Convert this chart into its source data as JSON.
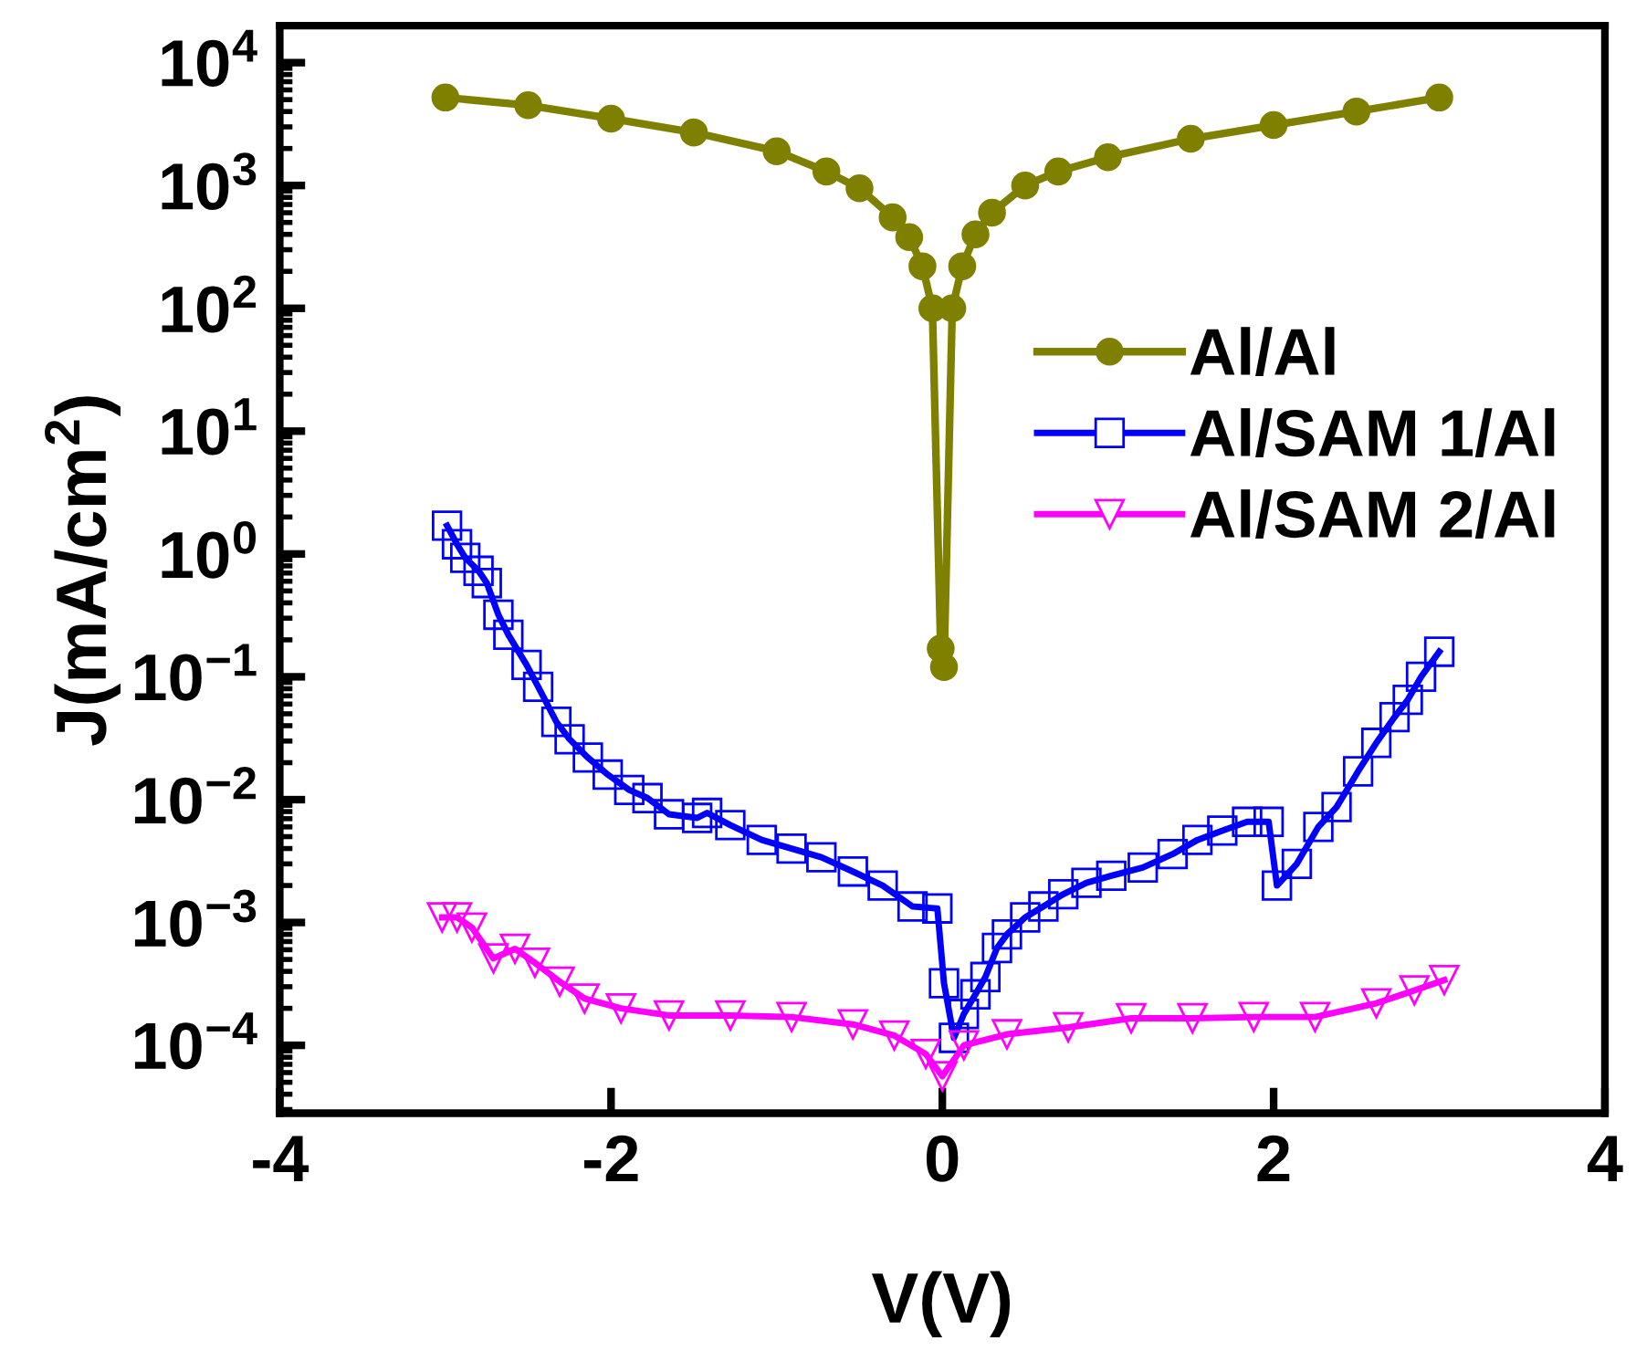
{
  "chart_data": {
    "type": "line",
    "xlabel": "V(V)",
    "ylabel": "J(mA/cm$^{2}$)",
    "log": "y",
    "grid": false,
    "legend": "center right",
    "xlim": [
      -4,
      4
    ],
    "xticks": [
      -4,
      -2,
      0,
      2,
      4
    ],
    "ylim": [
      2.8e-05,
      20000.0
    ],
    "yticks": [
      {
        "value": 0.0001,
        "label": "10$^{−4}$"
      },
      {
        "value": 0.001,
        "label": "10$^{−3}$"
      },
      {
        "value": 0.01,
        "label": "10$^{−2}$"
      },
      {
        "value": 0.1,
        "label": "10$^{−1}$"
      },
      {
        "value": 1,
        "label": "10$^{0}$"
      },
      {
        "value": 10,
        "label": "10$^{1}$"
      },
      {
        "value": 100,
        "label": "10$^{2}$"
      },
      {
        "value": 1000,
        "label": "10$^{3}$"
      },
      {
        "value": 10000,
        "label": "10$^{4}$"
      }
    ],
    "series": [
      {
        "name": "Al/Al",
        "color": "#808000",
        "marker": "circle",
        "x": [
          -3,
          -2.5,
          -2,
          -1.5,
          -1,
          -0.7,
          -0.5,
          -0.3,
          -0.2,
          -0.12,
          -0.06,
          -0.01,
          0.01,
          0.06,
          0.12,
          0.2,
          0.3,
          0.5,
          0.7,
          1,
          1.5,
          2,
          2.5,
          3
        ],
        "values": [
          5200,
          4500,
          3500,
          2700,
          1900,
          1300,
          950,
          550,
          380,
          220,
          100,
          0.17,
          0.12,
          100,
          220,
          400,
          600,
          1000,
          1300,
          1700,
          2400,
          3100,
          4000,
          5200
        ]
      },
      {
        "name": "Al/SAM 1/Al",
        "color": "#0000ff",
        "marker": "square",
        "x": [
          -2.99,
          -2.93,
          -2.88,
          -2.8,
          -2.75,
          -2.68,
          -2.62,
          -2.51,
          -2.44,
          -2.33,
          -2.25,
          -2.14,
          -2.02,
          -1.89,
          -1.78,
          -1.65,
          -1.48,
          -1.42,
          -1.28,
          -1.09,
          -0.91,
          -0.73,
          -0.54,
          -0.36,
          -0.18,
          -0.03,
          0.01,
          0.07,
          0.13,
          0.2,
          0.26,
          0.33,
          0.39,
          0.5,
          0.61,
          0.73,
          0.87,
          1.02,
          1.21,
          1.39,
          1.54,
          1.69,
          1.84,
          1.97,
          2.02,
          2.14,
          2.27,
          2.38,
          2.51,
          2.62,
          2.73,
          2.81,
          2.89,
          3.0
        ],
        "values": [
          1.7,
          1.2,
          0.93,
          0.73,
          0.58,
          0.32,
          0.22,
          0.125,
          0.083,
          0.043,
          0.031,
          0.022,
          0.016,
          0.012,
          0.0103,
          0.0076,
          0.0071,
          0.0078,
          0.0062,
          0.0047,
          0.004,
          0.0034,
          0.0026,
          0.002,
          0.00135,
          0.0013,
          0.00032,
          0.000115,
          0.00018,
          0.00026,
          0.00036,
          0.00062,
          0.0008,
          0.0011,
          0.00135,
          0.0017,
          0.0021,
          0.0024,
          0.0028,
          0.0036,
          0.0047,
          0.0056,
          0.0066,
          0.0066,
          0.002,
          0.003,
          0.006,
          0.0087,
          0.017,
          0.029,
          0.047,
          0.065,
          0.1,
          0.16
        ]
      },
      {
        "name": "Al/SAM 2/Al",
        "color": "#ff00ff",
        "marker": "triangle",
        "x": [
          -3.02,
          -2.93,
          -2.84,
          -2.71,
          -2.58,
          -2.46,
          -2.31,
          -2.16,
          -1.94,
          -1.65,
          -1.28,
          -0.91,
          -0.54,
          -0.29,
          -0.1,
          0.0,
          0.13,
          0.39,
          0.76,
          1.14,
          1.51,
          1.88,
          2.25,
          2.62,
          2.85,
          3.03
        ],
        "values": [
          0.0011,
          0.0011,
          0.00091,
          0.00051,
          0.00061,
          0.00047,
          0.00033,
          0.00024,
          0.0002,
          0.000175,
          0.000175,
          0.00017,
          0.000148,
          0.00012,
          8.5e-05,
          5.6e-05,
          0.0001,
          0.000123,
          0.00014,
          0.000166,
          0.000166,
          0.00017,
          0.00017,
          0.00022,
          0.00028,
          0.00034
        ]
      }
    ]
  }
}
